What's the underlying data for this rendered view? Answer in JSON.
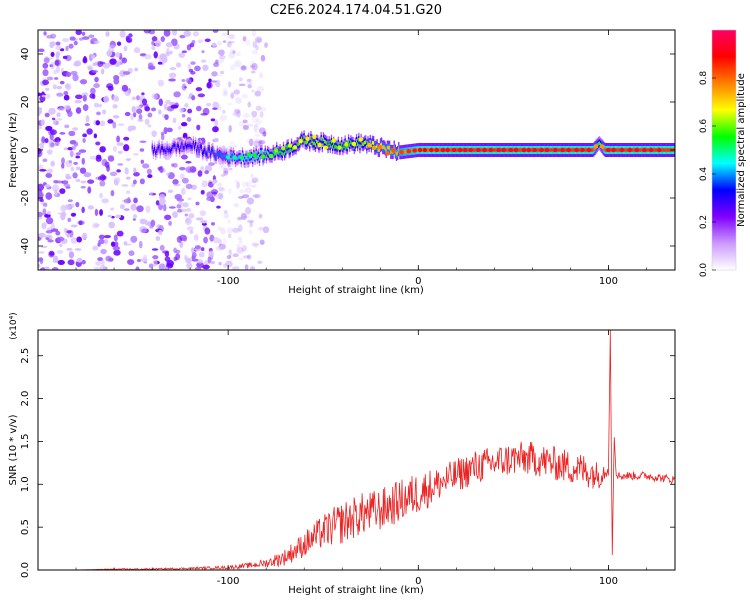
{
  "figure_title": "C2E6.2024.174.04.51.G20",
  "chart_data": [
    {
      "type": "heatmap",
      "title": "",
      "xlabel": "Height of straight line (km)",
      "ylabel": "Frequency (Hz)",
      "xlim": [
        -200,
        135
      ],
      "ylim": [
        -50,
        50
      ],
      "xticks": [
        -100,
        0,
        100
      ],
      "yticks": [
        -40,
        -20,
        0,
        20,
        40
      ],
      "grid": false,
      "colorbar": {
        "label": "Normalized spectral amplitude",
        "range": [
          0.0,
          1.0
        ],
        "ticks": [
          "0.0",
          "0.2",
          "0.4",
          "0.6",
          "0.8"
        ],
        "colors": [
          "#ffffff",
          "#cc99ff",
          "#7f00ff",
          "#0000ff",
          "#00ffff",
          "#00ff00",
          "#ffff00",
          "#ff8000",
          "#ff0000",
          "#ff0066"
        ]
      },
      "signal_track": {
        "description_values_x": [
          -135,
          -120,
          -110,
          -100,
          -90,
          -80,
          -70,
          -60,
          -50,
          -40,
          -30,
          -20,
          -10,
          0,
          20,
          40,
          60,
          80,
          92,
          95,
          98,
          100,
          120,
          135
        ],
        "center_frequency": [
          0,
          2,
          -1,
          -3,
          -3,
          -2,
          0,
          4,
          3,
          2,
          3,
          1,
          -1,
          0,
          0,
          0,
          0,
          0,
          0,
          3,
          0,
          0,
          0,
          0
        ],
        "amplitude": [
          0.3,
          0.3,
          0.35,
          0.4,
          0.45,
          0.5,
          0.55,
          0.6,
          0.6,
          0.55,
          0.6,
          0.7,
          0.75,
          0.8,
          0.85,
          0.85,
          0.85,
          0.85,
          0.85,
          0.5,
          0.85,
          0.85,
          0.85,
          0.85
        ]
      },
      "noise_region": {
        "x_from": -200,
        "x_to": -90
      }
    },
    {
      "type": "line",
      "title": "",
      "xlabel": "Height of straight line (km)",
      "ylabel": "SNR (10 * v/v)",
      "y_multiplier": "(x10⁴)",
      "xlim": [
        -200,
        135
      ],
      "ylim": [
        0,
        2.8
      ],
      "xticks": [
        -100,
        0,
        100
      ],
      "yticks": [
        "0.0",
        "0.5",
        "1.0",
        "1.5",
        "2.0",
        "2.5"
      ],
      "color": "#ee2222",
      "grid": false,
      "series": [
        {
          "x": [
            -200,
            -180,
            -160,
            -140,
            -120,
            -100,
            -90,
            -80,
            -70,
            -60,
            -50,
            -40,
            -30,
            -20,
            -10,
            0,
            10,
            20,
            30,
            40,
            50,
            60,
            70,
            80,
            90,
            95,
            100,
            101,
            102,
            103,
            104,
            110,
            120,
            135
          ],
          "y": [
            0.0,
            0.0,
            0.01,
            0.01,
            0.02,
            0.03,
            0.05,
            0.08,
            0.15,
            0.3,
            0.45,
            0.55,
            0.65,
            0.7,
            0.8,
            0.9,
            1.0,
            1.1,
            1.2,
            1.25,
            1.3,
            1.3,
            1.25,
            1.2,
            1.15,
            1.1,
            1.2,
            2.8,
            0.1,
            1.6,
            1.1,
            1.1,
            1.1,
            1.05
          ],
          "noise_amplitude": [
            0.0,
            0.0,
            0.005,
            0.01,
            0.01,
            0.02,
            0.03,
            0.05,
            0.1,
            0.15,
            0.2,
            0.25,
            0.25,
            0.25,
            0.25,
            0.25,
            0.2,
            0.2,
            0.2,
            0.2,
            0.2,
            0.2,
            0.2,
            0.2,
            0.2,
            0.15,
            0.1,
            0.0,
            0.0,
            0.0,
            0.05,
            0.05,
            0.05,
            0.05
          ]
        }
      ]
    }
  ]
}
